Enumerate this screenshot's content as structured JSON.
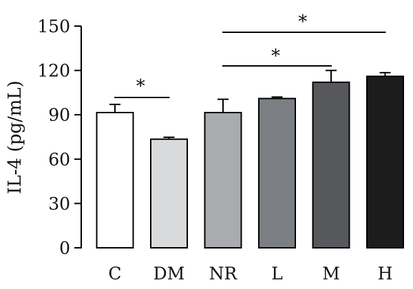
{
  "chart_data": {
    "type": "bar",
    "categories": [
      "C",
      "DM",
      "NR",
      "L",
      "M",
      "H"
    ],
    "values": [
      91.5,
      73.5,
      91.5,
      101,
      112,
      116
    ],
    "errors": [
      5.5,
      1.3,
      9.0,
      1.0,
      8.0,
      2.5
    ],
    "bar_colors": [
      "#ffffff",
      "#d9dadc",
      "#a9abaf",
      "#7b7e82",
      "#56585b",
      "#1c1c1c"
    ],
    "title": "",
    "xlabel": "",
    "ylabel": "IL-4 (pg/mL)",
    "ylim": [
      0,
      150
    ],
    "yticks": [
      0,
      30,
      60,
      90,
      120,
      150
    ],
    "grid": false,
    "significance": [
      {
        "from": "C",
        "to": "DM",
        "label": "*"
      },
      {
        "from": "NR",
        "to": "M",
        "label": "*"
      },
      {
        "from": "NR",
        "to": "H",
        "label": "*"
      }
    ]
  }
}
